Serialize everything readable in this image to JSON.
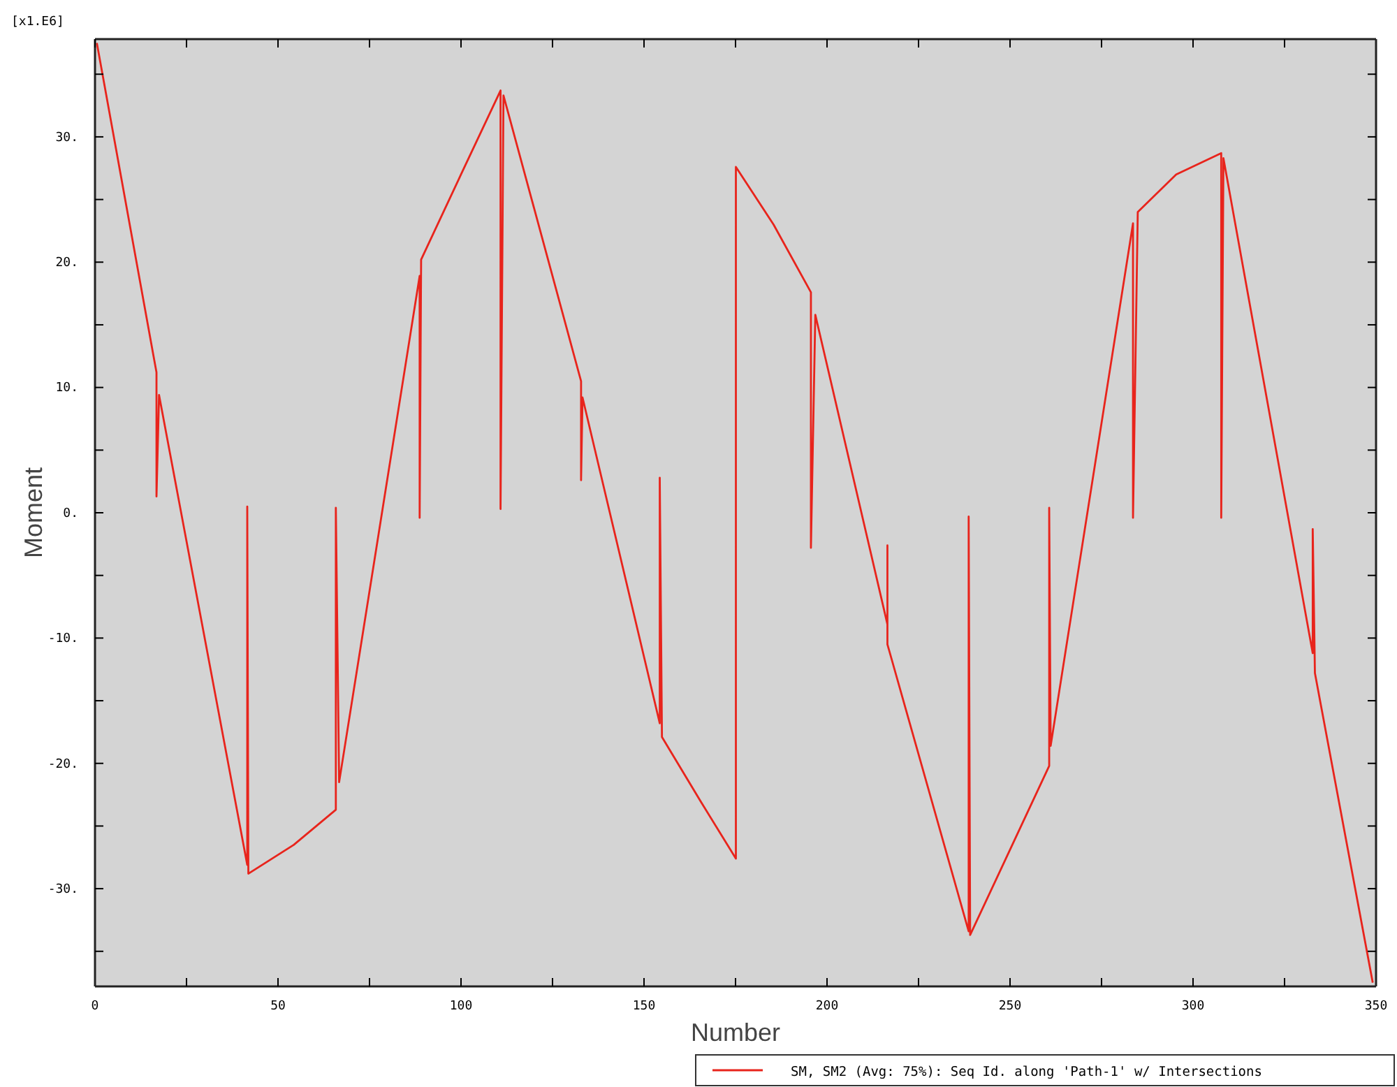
{
  "chart_data": {
    "type": "line",
    "xlabel": "Number",
    "ylabel": "Moment",
    "annotations": [
      "[x1.E6]"
    ],
    "xlim": [
      0,
      350
    ],
    "ylim": [
      -37.8,
      37.8
    ],
    "xticks": [
      0,
      {
        "value": 25,
        "label": null
      },
      50,
      {
        "value": 75,
        "label": null
      },
      100,
      {
        "value": 125,
        "label": null
      },
      150,
      {
        "value": 175,
        "label": null
      },
      200,
      {
        "value": 225,
        "label": null
      },
      250,
      {
        "value": 275,
        "label": null
      },
      300,
      {
        "value": 325,
        "label": null
      },
      350
    ],
    "yticks": [
      {
        "value": -35,
        "label": null
      },
      {
        "value": -30,
        "label": "-30."
      },
      {
        "value": -25,
        "label": null
      },
      {
        "value": -20,
        "label": "-20."
      },
      {
        "value": -15,
        "label": null
      },
      {
        "value": -10,
        "label": "-10."
      },
      {
        "value": -5,
        "label": null
      },
      {
        "value": 0,
        "label": "0."
      },
      {
        "value": 5,
        "label": null
      },
      {
        "value": 10,
        "label": "10."
      },
      {
        "value": 15,
        "label": null
      },
      {
        "value": 20,
        "label": "20."
      },
      {
        "value": 25,
        "label": null
      },
      {
        "value": 30,
        "label": "30."
      },
      {
        "value": 35,
        "label": null
      }
    ],
    "grid": false,
    "legend": "bottom right",
    "marker": "none",
    "line_style": "solid",
    "series": [
      {
        "name": "SM, SM2 (Avg: 75%): Seq Id. along 'Path-1' w/ Intersections",
        "color": "#e8241c",
        "x": [
          0.5,
          16.8,
          16.8,
          17.5,
          41.6,
          41.6,
          41.9,
          54.3,
          65.8,
          65.8,
          66.7,
          88.7,
          88.7,
          89.1,
          100,
          110.8,
          110.8,
          111.6,
          132.8,
          132.8,
          133.2,
          154.3,
          154.3,
          154.9,
          165.4,
          175.1,
          175.1,
          185.4,
          195.6,
          195.6,
          196.8,
          216.5,
          216.5,
          216.5,
          238.7,
          238.7,
          239.1,
          260.7,
          260.7,
          261.1,
          283.6,
          283.6,
          284.9,
          295.4,
          307.7,
          307.7,
          308.3,
          332.7,
          332.7,
          333.3,
          349.1
        ],
        "values": [
          37.5,
          11.2,
          1.3,
          9.4,
          -28.1,
          0.5,
          -28.8,
          -26.5,
          -23.7,
          0.4,
          -21.5,
          18.9,
          -0.4,
          20.2,
          27.0,
          33.7,
          0.3,
          33.3,
          10.5,
          2.6,
          9.2,
          -16.8,
          2.8,
          -17.9,
          -23.0,
          -27.6,
          27.6,
          23.0,
          17.6,
          -2.8,
          15.8,
          -8.9,
          -2.6,
          -10.5,
          -33.4,
          -0.3,
          -33.7,
          -20.2,
          0.4,
          -18.6,
          23.1,
          -0.4,
          24.0,
          27.0,
          28.7,
          -0.4,
          28.3,
          -11.2,
          -1.3,
          -12.8,
          -37.5
        ]
      }
    ]
  }
}
